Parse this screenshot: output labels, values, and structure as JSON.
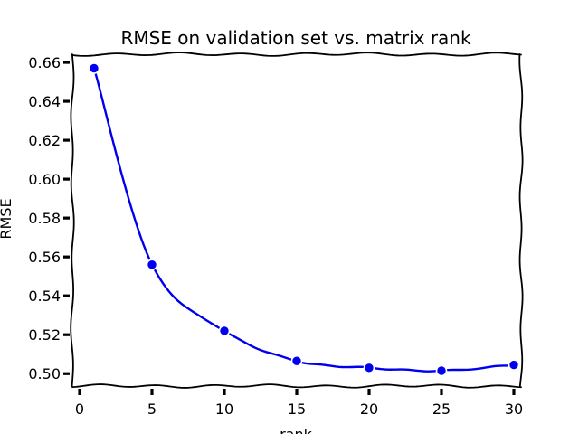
{
  "chart_data": {
    "type": "line",
    "title": "RMSE on validation set vs. matrix rank",
    "xlabel": "rank",
    "ylabel": "RMSE",
    "xlim": [
      -0.5,
      30.5
    ],
    "ylim": [
      0.4936,
      0.6642
    ],
    "xticks": [
      0,
      5,
      10,
      15,
      20,
      25,
      30
    ],
    "yticks": [
      0.5,
      0.52,
      0.54,
      0.56,
      0.58,
      0.6,
      0.62,
      0.64,
      0.66
    ],
    "ytick_labels": [
      "0.50",
      "0.52",
      "0.54",
      "0.56",
      "0.58",
      "0.60",
      "0.62",
      "0.64",
      "0.66"
    ],
    "grid": false,
    "series": [
      {
        "x": [
          1,
          5,
          10,
          15,
          20,
          25,
          30
        ],
        "y": [
          0.657,
          0.556,
          0.522,
          0.5065,
          0.503,
          0.5015,
          0.5045
        ],
        "color": "#0000ee",
        "marker": "circle",
        "style": "xkcd-smooth"
      }
    ]
  }
}
